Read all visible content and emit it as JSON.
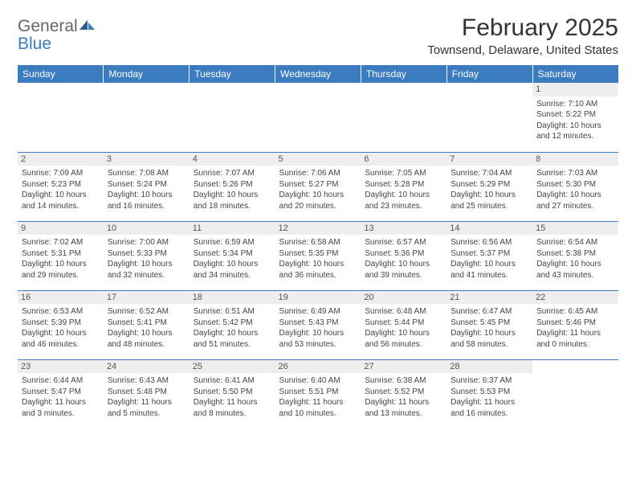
{
  "logo": {
    "general": "General",
    "blue": "Blue"
  },
  "title": "February 2025",
  "location": "Townsend, Delaware, United States",
  "colors": {
    "header_bg": "#3b7bbf",
    "header_text": "#ffffff",
    "daynum_bg": "#eeeeee",
    "border": "#3b7bbf",
    "text": "#444444",
    "logo_gray": "#666666",
    "logo_blue": "#3b7bbf",
    "page_bg": "#ffffff"
  },
  "weekdays": [
    "Sunday",
    "Monday",
    "Tuesday",
    "Wednesday",
    "Thursday",
    "Friday",
    "Saturday"
  ],
  "weeks": [
    [
      null,
      null,
      null,
      null,
      null,
      null,
      {
        "d": "1",
        "sr": "Sunrise: 7:10 AM",
        "ss": "Sunset: 5:22 PM",
        "dl1": "Daylight: 10 hours",
        "dl2": "and 12 minutes."
      }
    ],
    [
      {
        "d": "2",
        "sr": "Sunrise: 7:09 AM",
        "ss": "Sunset: 5:23 PM",
        "dl1": "Daylight: 10 hours",
        "dl2": "and 14 minutes."
      },
      {
        "d": "3",
        "sr": "Sunrise: 7:08 AM",
        "ss": "Sunset: 5:24 PM",
        "dl1": "Daylight: 10 hours",
        "dl2": "and 16 minutes."
      },
      {
        "d": "4",
        "sr": "Sunrise: 7:07 AM",
        "ss": "Sunset: 5:26 PM",
        "dl1": "Daylight: 10 hours",
        "dl2": "and 18 minutes."
      },
      {
        "d": "5",
        "sr": "Sunrise: 7:06 AM",
        "ss": "Sunset: 5:27 PM",
        "dl1": "Daylight: 10 hours",
        "dl2": "and 20 minutes."
      },
      {
        "d": "6",
        "sr": "Sunrise: 7:05 AM",
        "ss": "Sunset: 5:28 PM",
        "dl1": "Daylight: 10 hours",
        "dl2": "and 23 minutes."
      },
      {
        "d": "7",
        "sr": "Sunrise: 7:04 AM",
        "ss": "Sunset: 5:29 PM",
        "dl1": "Daylight: 10 hours",
        "dl2": "and 25 minutes."
      },
      {
        "d": "8",
        "sr": "Sunrise: 7:03 AM",
        "ss": "Sunset: 5:30 PM",
        "dl1": "Daylight: 10 hours",
        "dl2": "and 27 minutes."
      }
    ],
    [
      {
        "d": "9",
        "sr": "Sunrise: 7:02 AM",
        "ss": "Sunset: 5:31 PM",
        "dl1": "Daylight: 10 hours",
        "dl2": "and 29 minutes."
      },
      {
        "d": "10",
        "sr": "Sunrise: 7:00 AM",
        "ss": "Sunset: 5:33 PM",
        "dl1": "Daylight: 10 hours",
        "dl2": "and 32 minutes."
      },
      {
        "d": "11",
        "sr": "Sunrise: 6:59 AM",
        "ss": "Sunset: 5:34 PM",
        "dl1": "Daylight: 10 hours",
        "dl2": "and 34 minutes."
      },
      {
        "d": "12",
        "sr": "Sunrise: 6:58 AM",
        "ss": "Sunset: 5:35 PM",
        "dl1": "Daylight: 10 hours",
        "dl2": "and 36 minutes."
      },
      {
        "d": "13",
        "sr": "Sunrise: 6:57 AM",
        "ss": "Sunset: 5:36 PM",
        "dl1": "Daylight: 10 hours",
        "dl2": "and 39 minutes."
      },
      {
        "d": "14",
        "sr": "Sunrise: 6:56 AM",
        "ss": "Sunset: 5:37 PM",
        "dl1": "Daylight: 10 hours",
        "dl2": "and 41 minutes."
      },
      {
        "d": "15",
        "sr": "Sunrise: 6:54 AM",
        "ss": "Sunset: 5:38 PM",
        "dl1": "Daylight: 10 hours",
        "dl2": "and 43 minutes."
      }
    ],
    [
      {
        "d": "16",
        "sr": "Sunrise: 6:53 AM",
        "ss": "Sunset: 5:39 PM",
        "dl1": "Daylight: 10 hours",
        "dl2": "and 46 minutes."
      },
      {
        "d": "17",
        "sr": "Sunrise: 6:52 AM",
        "ss": "Sunset: 5:41 PM",
        "dl1": "Daylight: 10 hours",
        "dl2": "and 48 minutes."
      },
      {
        "d": "18",
        "sr": "Sunrise: 6:51 AM",
        "ss": "Sunset: 5:42 PM",
        "dl1": "Daylight: 10 hours",
        "dl2": "and 51 minutes."
      },
      {
        "d": "19",
        "sr": "Sunrise: 6:49 AM",
        "ss": "Sunset: 5:43 PM",
        "dl1": "Daylight: 10 hours",
        "dl2": "and 53 minutes."
      },
      {
        "d": "20",
        "sr": "Sunrise: 6:48 AM",
        "ss": "Sunset: 5:44 PM",
        "dl1": "Daylight: 10 hours",
        "dl2": "and 56 minutes."
      },
      {
        "d": "21",
        "sr": "Sunrise: 6:47 AM",
        "ss": "Sunset: 5:45 PM",
        "dl1": "Daylight: 10 hours",
        "dl2": "and 58 minutes."
      },
      {
        "d": "22",
        "sr": "Sunrise: 6:45 AM",
        "ss": "Sunset: 5:46 PM",
        "dl1": "Daylight: 11 hours",
        "dl2": "and 0 minutes."
      }
    ],
    [
      {
        "d": "23",
        "sr": "Sunrise: 6:44 AM",
        "ss": "Sunset: 5:47 PM",
        "dl1": "Daylight: 11 hours",
        "dl2": "and 3 minutes."
      },
      {
        "d": "24",
        "sr": "Sunrise: 6:43 AM",
        "ss": "Sunset: 5:48 PM",
        "dl1": "Daylight: 11 hours",
        "dl2": "and 5 minutes."
      },
      {
        "d": "25",
        "sr": "Sunrise: 6:41 AM",
        "ss": "Sunset: 5:50 PM",
        "dl1": "Daylight: 11 hours",
        "dl2": "and 8 minutes."
      },
      {
        "d": "26",
        "sr": "Sunrise: 6:40 AM",
        "ss": "Sunset: 5:51 PM",
        "dl1": "Daylight: 11 hours",
        "dl2": "and 10 minutes."
      },
      {
        "d": "27",
        "sr": "Sunrise: 6:38 AM",
        "ss": "Sunset: 5:52 PM",
        "dl1": "Daylight: 11 hours",
        "dl2": "and 13 minutes."
      },
      {
        "d": "28",
        "sr": "Sunrise: 6:37 AM",
        "ss": "Sunset: 5:53 PM",
        "dl1": "Daylight: 11 hours",
        "dl2": "and 16 minutes."
      },
      null
    ]
  ]
}
